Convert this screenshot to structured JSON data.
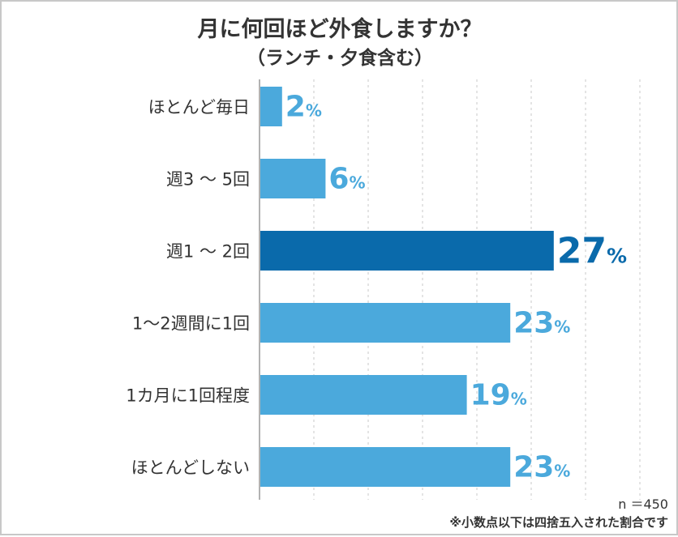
{
  "chart_data": {
    "type": "bar",
    "orientation": "horizontal",
    "title": "月に何回ほど外食しますか？",
    "subtitle": "（ランチ・夕食含む）",
    "categories": [
      "ほとんど毎日",
      "週3 ～ 5回",
      "週1 ～ 2回",
      "1～2週間に1回",
      "1カ月に1回程度",
      "ほとんどしない"
    ],
    "values": [
      2,
      6,
      27,
      23,
      19,
      23
    ],
    "value_suffix": "%",
    "highlight_index": 2,
    "xlim": [
      0,
      35
    ],
    "grid": true,
    "colors": {
      "bar": "#4ba9dc",
      "highlight": "#0a6aab",
      "label": "#4ba9dc",
      "highlight_label": "#0a6aab"
    }
  },
  "footnote": {
    "n": "n ＝450",
    "note": "※小数点以下は四捨五入された割合です"
  }
}
